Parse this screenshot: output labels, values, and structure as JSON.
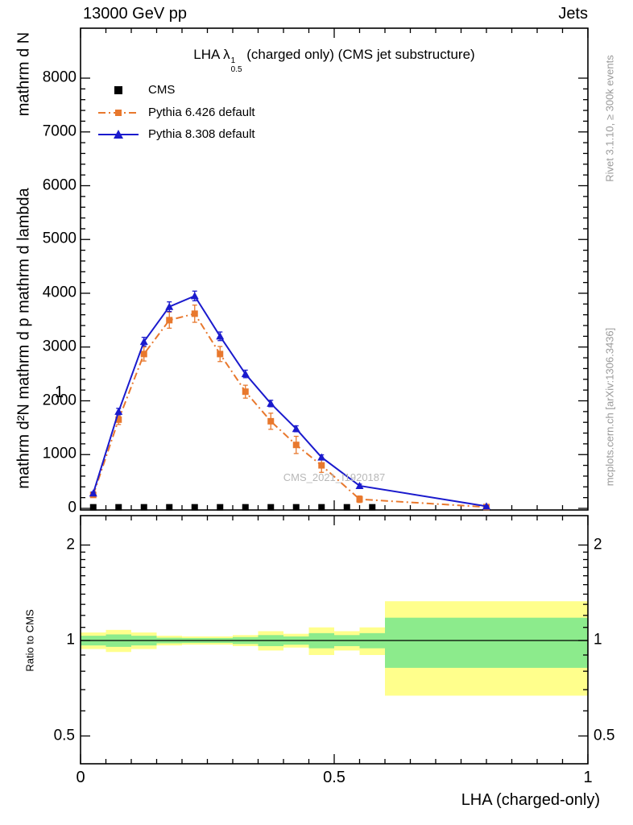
{
  "header": {
    "left": "13000 GeV pp",
    "right": "Jets"
  },
  "title": {
    "prefix": "LHA ",
    "lambda": "λ",
    "sup": "1",
    "sub": "0.5",
    "suffix": " (charged only) (CMS jet substructure)"
  },
  "legend": [
    {
      "label": "CMS"
    },
    {
      "label": "Pythia 6.426 default"
    },
    {
      "label": "Pythia 8.308 default"
    }
  ],
  "watermark": "CMS_2021_I1920187",
  "side_notes": {
    "top_right": "Rivet 3.1.10, ≥ 300k events",
    "bottom_right": "mcplots.cern.ch [arXiv:1306.3436]"
  },
  "axes": {
    "y_label_top": "mathrm d N",
    "y_label_main": "mathrm d²N mathrm d p mathrm d lambda",
    "y_label_one": "1",
    "ratio_label": "Ratio to CMS",
    "x_title": "LHA (charged-only)",
    "x_ticks": [
      {
        "label": "0",
        "value": 0
      },
      {
        "label": "0.5",
        "value": 0.5
      },
      {
        "label": "1",
        "value": 1
      }
    ],
    "y_ticks": [
      {
        "label": "0",
        "value": 0
      },
      {
        "label": "1000",
        "value": 1000
      },
      {
        "label": "2000",
        "value": 2000
      },
      {
        "label": "3000",
        "value": 3000
      },
      {
        "label": "4000",
        "value": 4000
      },
      {
        "label": "5000",
        "value": 5000
      },
      {
        "label": "6000",
        "value": 6000
      },
      {
        "label": "7000",
        "value": 7000
      },
      {
        "label": "8000",
        "value": 8000
      }
    ],
    "ratio_ticks": [
      {
        "label": "0.5",
        "value": 0.5
      },
      {
        "label": "1",
        "value": 1
      },
      {
        "label": "2",
        "value": 2
      }
    ]
  },
  "colors": {
    "cms": "#000000",
    "pythia6": "#e8782d",
    "pythia8": "#1a1acd",
    "band_yellow": "#ffff8c",
    "band_green": "#8ceb8c",
    "frame": "#000000"
  },
  "chart_data": {
    "type": "line",
    "title": "LHA λ^1_0.5 (charged only) (CMS jet substructure)",
    "xlabel": "LHA (charged-only)",
    "ylabel": "mathrm d²N / mathrm d p mathrm d lambda (1 / mathrm d N)",
    "xlim": [
      0,
      1
    ],
    "ylim": [
      0,
      8900
    ],
    "ratio_ylim": [
      0.4,
      2.5
    ],
    "legend_position": "top-left",
    "grid": false,
    "series": [
      {
        "id": "cms",
        "label": "CMS",
        "marker": "square",
        "style": "markers-only",
        "x": [
          0.025,
          0.075,
          0.125,
          0.175,
          0.225,
          0.275,
          0.325,
          0.375,
          0.425,
          0.475,
          0.525,
          0.575
        ],
        "values": [
          20,
          20,
          20,
          20,
          20,
          20,
          20,
          20,
          20,
          20,
          20,
          20
        ]
      },
      {
        "id": "pythia6",
        "label": "Pythia 6.426 default",
        "marker": "square",
        "dash": "9 4 2 4",
        "x": [
          0.025,
          0.075,
          0.125,
          0.175,
          0.225,
          0.275,
          0.325,
          0.375,
          0.425,
          0.475,
          0.55,
          0.8
        ],
        "values": [
          250,
          1650,
          2870,
          3500,
          3620,
          2870,
          2170,
          1620,
          1180,
          800,
          170,
          25
        ],
        "errors": [
          40,
          90,
          130,
          150,
          160,
          140,
          120,
          150,
          160,
          130,
          60,
          10
        ]
      },
      {
        "id": "pythia8",
        "label": "Pythia 8.308 default",
        "marker": "triangle",
        "x": [
          0.025,
          0.075,
          0.125,
          0.175,
          0.225,
          0.275,
          0.325,
          0.375,
          0.425,
          0.475,
          0.55,
          0.8
        ],
        "values": [
          280,
          1800,
          3100,
          3750,
          3950,
          3200,
          2500,
          1950,
          1480,
          950,
          420,
          40
        ],
        "errors": [
          25,
          60,
          80,
          90,
          90,
          80,
          70,
          60,
          55,
          45,
          30,
          8
        ]
      }
    ],
    "ratio": {
      "reference": "CMS",
      "unity_line": 1,
      "bin_edges": [
        0,
        0.05,
        0.1,
        0.15,
        0.2,
        0.25,
        0.3,
        0.35,
        0.4,
        0.45,
        0.5,
        0.55,
        0.6,
        1.0
      ],
      "yellow_halfwidth": [
        0.06,
        0.08,
        0.06,
        0.035,
        0.03,
        0.03,
        0.04,
        0.07,
        0.05,
        0.1,
        0.07,
        0.1,
        0.33
      ],
      "green_halfwidth": [
        0.035,
        0.045,
        0.035,
        0.02,
        0.018,
        0.018,
        0.025,
        0.04,
        0.03,
        0.055,
        0.04,
        0.055,
        0.18
      ]
    }
  }
}
